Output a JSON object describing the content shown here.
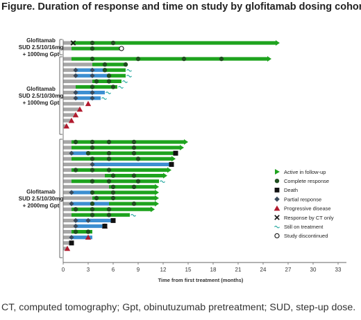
{
  "title": "Figure. Duration of response and time on study by glofitamab dosing cohort",
  "caption": "CT, computed tomography; Gpt, obinutuzumab pretreatment; SUD, step-up dose.",
  "colors": {
    "gray": "#a6a6a6",
    "blue": "#3d8fd1",
    "green": "#1ea31e",
    "marker_dark": "#1f4e1f",
    "death": "#111111",
    "partial": "#3a4a5c",
    "progressive": "#b11a2e",
    "ct": "#111111",
    "still": "#1aa39a"
  },
  "chart_data": {
    "type": "swimmer",
    "title": "Figure. Duration of response and time on study by glofitamab dosing cohort",
    "xlabel": "Time from first treatment (months)",
    "xlim": [
      0,
      34
    ],
    "xticks": [
      0,
      3,
      6,
      9,
      12,
      15,
      18,
      21,
      24,
      27,
      30,
      33
    ],
    "legend": {
      "placement": "right",
      "items": [
        {
          "key": "active",
          "label": "Active in follow-up",
          "icon": "triangle-right-icon"
        },
        {
          "key": "cr",
          "label": "Complete response",
          "icon": "circle-filled-icon"
        },
        {
          "key": "death",
          "label": "Death",
          "icon": "square-icon"
        },
        {
          "key": "pr",
          "label": "Partial response",
          "icon": "diamond-icon"
        },
        {
          "key": "pd",
          "label": "Progressive disease",
          "icon": "triangle-up-icon"
        },
        {
          "key": "ct",
          "label": "Response by CT only",
          "icon": "x-mark-icon"
        },
        {
          "key": "still",
          "label": "Still on treatment",
          "icon": "tilde-icon"
        },
        {
          "key": "disc",
          "label": "Study discontinued",
          "icon": "circle-open-icon"
        }
      ]
    },
    "cohorts": [
      {
        "label_lines": [
          "Glofitamab",
          "SUD 2.5/10/16mg",
          "+ 1000mg Gpt"
        ],
        "patients": [
          {
            "treat": 1,
            "resp": [
              1,
              25.5
            ],
            "cr": [
              3.5,
              6
            ],
            "ct": 1.2,
            "arrow": true
          },
          {
            "treat": 1,
            "resp": [
              1,
              7
            ],
            "cr": [
              3.5
            ],
            "disc": 7
          }
        ]
      },
      {
        "label_lines": [
          "Glofitamab",
          "SUD 2.5/10/30mg",
          "+ 1000mg Gpt"
        ],
        "patients": [
          {
            "treat": 1,
            "resp": [
              1,
              24.5
            ],
            "cr": [
              3.5,
              9,
              14.5,
              19
            ],
            "arrow": true
          },
          {
            "treat": 3.5,
            "resp": [
              3.5,
              7.5
            ],
            "cr": [
              5,
              7.5
            ]
          },
          {
            "treat": 1.5,
            "blue": [
              1.5,
              5
            ],
            "resp": [
              5,
              7.5
            ],
            "pr": [
              1.5,
              3.5
            ],
            "cr": [
              5
            ],
            "still": true
          },
          {
            "treat": 1.5,
            "blue": [
              1.5,
              5.5
            ],
            "resp": [
              5.5,
              7.5
            ],
            "pr": [
              1.5,
              3.5
            ],
            "cr": [
              5.5
            ],
            "still": true
          },
          {
            "treat": 3.5,
            "resp": [
              3.5,
              7
            ],
            "cr": [
              4,
              5.5
            ],
            "still": true
          },
          {
            "treat": 1.5,
            "resp": [
              1.5,
              6.5
            ],
            "cr": [
              3.5,
              6
            ],
            "still": true
          },
          {
            "treat": 1.5,
            "blue": [
              1.5,
              5
            ],
            "pr": [
              1.5,
              3.5
            ],
            "still": true
          },
          {
            "treat": 1.5,
            "blue": [
              1.5,
              4.5
            ],
            "pr": [
              1.5,
              3.5
            ],
            "still": true
          },
          {
            "treat": 2.5,
            "pd": [
              3
            ]
          },
          {
            "treat": 2,
            "pd": [
              2
            ]
          },
          {
            "treat": 1.5,
            "pd": [
              1.5
            ]
          },
          {
            "treat": 1,
            "pd": [
              1
            ]
          },
          {
            "treat": 0.5,
            "pd": [
              0.4
            ]
          }
        ]
      },
      {
        "label_lines": [
          "Glofitamab",
          "SUD 2.5/10/30mg",
          "+ 2000mg Gpt"
        ],
        "patients": [
          {
            "treat": 1,
            "resp": [
              1,
              14.5
            ],
            "cr": [
              1.5,
              3.5,
              5.5,
              8.5
            ],
            "arrow": true
          },
          {
            "treat": 1,
            "resp": [
              1,
              14
            ],
            "cr": [
              3.5,
              8.5
            ],
            "arrow": true
          },
          {
            "treat": 1,
            "blue": [
              1,
              3
            ],
            "resp": [
              3,
              13.5
            ],
            "pr": [
              1
            ],
            "cr": [
              3,
              5.5,
              8.5
            ],
            "death": 13.5
          },
          {
            "treat": 1,
            "resp": [
              1,
              13
            ],
            "cr": [
              3.5,
              5.5,
              9
            ],
            "arrow": true
          },
          {
            "treat": 3.5,
            "blue": [
              3.5,
              13
            ],
            "pr": [
              3.5
            ],
            "death": 13
          },
          {
            "treat": 1,
            "resp": [
              1,
              12.5
            ],
            "cr": [
              1.5,
              3.5,
              5.5
            ],
            "arrow": true
          },
          {
            "treat": 5,
            "resp": [
              5,
              12
            ],
            "cr": [
              6,
              8.5
            ],
            "arrow": true
          },
          {
            "treat": 1,
            "resp": [
              1,
              11.5
            ],
            "cr": [
              3.5,
              5.5,
              9
            ],
            "still": true
          },
          {
            "treat": 5.5,
            "resp": [
              5.5,
              11
            ],
            "cr": [
              6,
              8.5
            ],
            "arrow": true
          },
          {
            "treat": 1,
            "blue": [
              1,
              3.5
            ],
            "resp": [
              3.5,
              11
            ],
            "pr": [
              1
            ],
            "cr": [
              3.5,
              6
            ],
            "arrow": true
          },
          {
            "treat": 3.5,
            "resp": [
              3.5,
              11
            ],
            "cr": [
              4,
              6
            ],
            "arrow": true
          },
          {
            "treat": 1,
            "blue": [
              1,
              5.5
            ],
            "resp": [
              5.5,
              11
            ],
            "pr": [
              1
            ],
            "cr": [
              3.5,
              8.5
            ],
            "arrow": true
          },
          {
            "treat": 1,
            "resp": [
              1,
              10.5
            ],
            "cr": [
              1.5,
              3.5,
              5.5
            ],
            "arrow": true
          },
          {
            "treat": 1,
            "resp": [
              1,
              8
            ],
            "cr": [
              3.5,
              5.5
            ],
            "still": true
          },
          {
            "treat": 1.5,
            "blue": [
              1.5,
              6
            ],
            "pr": [
              1.5,
              3
            ],
            "death": 6
          },
          {
            "treat": 1.5,
            "blue": [
              1.5,
              5
            ],
            "pr": [
              1.5
            ],
            "pd": [
              5
            ],
            "death": 5
          },
          {
            "treat": 1,
            "resp": [
              1,
              3.5
            ],
            "cr": [
              1.5,
              3
            ]
          },
          {
            "treat": 1,
            "blue": [
              1,
              3.5
            ],
            "pr": [
              1
            ],
            "pd": [
              3
            ]
          },
          {
            "treat": 1,
            "death": 1
          },
          {
            "treat": 0.5,
            "pd": [
              0.5
            ]
          }
        ]
      }
    ]
  }
}
